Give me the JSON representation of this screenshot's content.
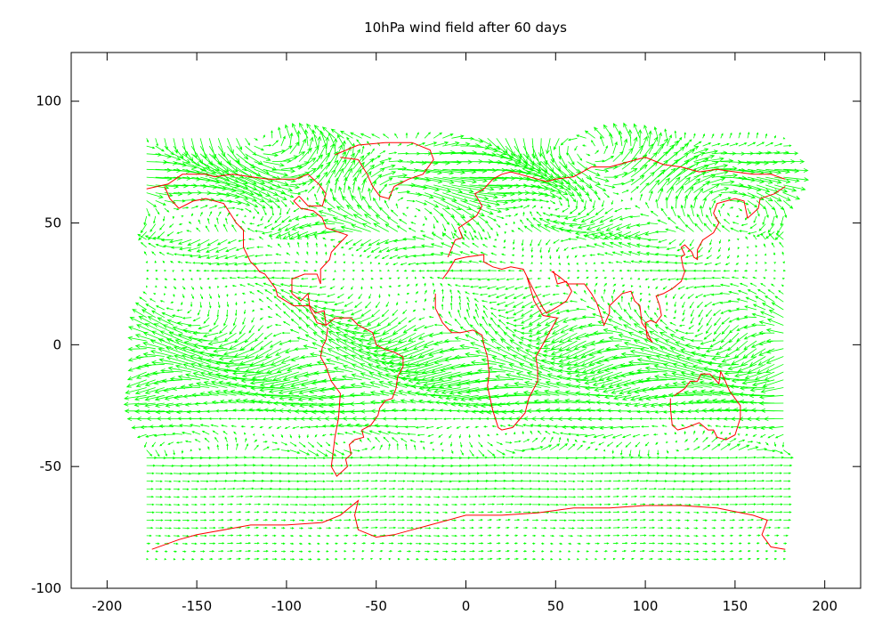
{
  "chart_data": {
    "type": "vector-field",
    "title": "10hPa wind field after 60 days",
    "xlabel": "",
    "ylabel": "",
    "xlim": [
      -220,
      220
    ],
    "ylim": [
      -100,
      120
    ],
    "xticks": [
      -200,
      -150,
      -100,
      -50,
      0,
      50,
      100,
      150,
      200
    ],
    "yticks": [
      -100,
      -50,
      0,
      50,
      100
    ],
    "grid": false,
    "field_extent": {
      "lon": [
        -178,
        178
      ],
      "lat": [
        -88,
        88
      ]
    },
    "colors": {
      "vectors": "#00ff00",
      "coastlines": "#ff0000",
      "axes": "#000000"
    },
    "coastlines": [
      [
        [
          -178,
          64
        ],
        [
          -166,
          66
        ],
        [
          -158,
          70
        ],
        [
          -145,
          70
        ],
        [
          -140,
          69
        ],
        [
          -130,
          70
        ],
        [
          -120,
          69
        ],
        [
          -110,
          68
        ],
        [
          -95,
          68
        ],
        [
          -88,
          70
        ],
        [
          -82,
          66
        ],
        [
          -78,
          62
        ],
        [
          -80,
          57
        ],
        [
          -88,
          57
        ],
        [
          -93,
          61
        ],
        [
          -96,
          59
        ],
        [
          -92,
          56
        ],
        [
          -85,
          55
        ],
        [
          -80,
          52
        ],
        [
          -78,
          48
        ],
        [
          -66,
          45
        ],
        [
          -70,
          42
        ],
        [
          -75,
          38
        ],
        [
          -76,
          35
        ],
        [
          -81,
          31
        ],
        [
          -81,
          25
        ],
        [
          -83,
          29
        ],
        [
          -90,
          29
        ],
        [
          -97,
          27
        ],
        [
          -97,
          21
        ],
        [
          -92,
          18
        ],
        [
          -88,
          21
        ],
        [
          -87,
          15
        ],
        [
          -83,
          9
        ],
        [
          -78,
          8
        ],
        [
          -79,
          14
        ],
        [
          -84,
          13
        ],
        [
          -87,
          16
        ],
        [
          -91,
          16
        ],
        [
          -96,
          16
        ],
        [
          -105,
          20
        ],
        [
          -106,
          23
        ],
        [
          -112,
          29
        ],
        [
          -115,
          30
        ],
        [
          -117,
          32
        ],
        [
          -120,
          34
        ],
        [
          -124,
          40
        ],
        [
          -124,
          47
        ],
        [
          -128,
          50
        ],
        [
          -135,
          58
        ],
        [
          -145,
          60
        ],
        [
          -152,
          59
        ],
        [
          -160,
          56
        ],
        [
          -165,
          60
        ],
        [
          -168,
          65
        ]
      ],
      [
        [
          -78,
          8
        ],
        [
          -73,
          11
        ],
        [
          -64,
          11
        ],
        [
          -60,
          8
        ],
        [
          -52,
          5
        ],
        [
          -50,
          0
        ],
        [
          -45,
          -2
        ],
        [
          -40,
          -3
        ],
        [
          -35,
          -5
        ],
        [
          -35,
          -9
        ],
        [
          -38,
          -13
        ],
        [
          -39,
          -18
        ],
        [
          -41,
          -22
        ],
        [
          -45,
          -23
        ],
        [
          -48,
          -26
        ],
        [
          -49,
          -29
        ],
        [
          -53,
          -33
        ],
        [
          -58,
          -35
        ],
        [
          -57,
          -38
        ],
        [
          -62,
          -39
        ],
        [
          -65,
          -41
        ],
        [
          -64,
          -45
        ],
        [
          -67,
          -47
        ],
        [
          -66,
          -50
        ],
        [
          -69,
          -52
        ],
        [
          -72,
          -54
        ],
        [
          -75,
          -50
        ],
        [
          -74,
          -44
        ],
        [
          -73,
          -38
        ],
        [
          -71,
          -30
        ],
        [
          -70,
          -20
        ],
        [
          -75,
          -15
        ],
        [
          -78,
          -9
        ],
        [
          -81,
          -5
        ],
        [
          -80,
          -1
        ],
        [
          -78,
          2
        ],
        [
          -77,
          7
        ]
      ],
      [
        [
          -73,
          78
        ],
        [
          -60,
          82
        ],
        [
          -45,
          83
        ],
        [
          -30,
          83
        ],
        [
          -20,
          80
        ],
        [
          -18,
          76
        ],
        [
          -22,
          72
        ],
        [
          -24,
          70
        ],
        [
          -32,
          68
        ],
        [
          -40,
          65
        ],
        [
          -43,
          60
        ],
        [
          -48,
          61
        ],
        [
          -52,
          65
        ],
        [
          -55,
          70
        ],
        [
          -60,
          76
        ],
        [
          -70,
          77
        ]
      ],
      [
        [
          -10,
          36
        ],
        [
          -6,
          43
        ],
        [
          -2,
          44
        ],
        [
          -4,
          48
        ],
        [
          2,
          51
        ],
        [
          6,
          53
        ],
        [
          9,
          57
        ],
        [
          5,
          62
        ],
        [
          10,
          64
        ],
        [
          15,
          68
        ],
        [
          20,
          70
        ],
        [
          25,
          71
        ],
        [
          30,
          70
        ],
        [
          40,
          68
        ],
        [
          45,
          67
        ],
        [
          50,
          68
        ],
        [
          60,
          69
        ],
        [
          70,
          73
        ],
        [
          80,
          73
        ],
        [
          90,
          75
        ],
        [
          100,
          77
        ],
        [
          110,
          74
        ],
        [
          120,
          73
        ],
        [
          130,
          71
        ],
        [
          140,
          72
        ],
        [
          150,
          71
        ],
        [
          160,
          70
        ],
        [
          170,
          70
        ],
        [
          178,
          68
        ]
      ],
      [
        [
          -17,
          21
        ],
        [
          -17,
          15
        ],
        [
          -13,
          9
        ],
        [
          -8,
          5
        ],
        [
          -3,
          5
        ],
        [
          4,
          6
        ],
        [
          9,
          4
        ],
        [
          10,
          0
        ],
        [
          12,
          -5
        ],
        [
          13,
          -12
        ],
        [
          12,
          -17
        ],
        [
          15,
          -27
        ],
        [
          18,
          -34
        ],
        [
          20,
          -35
        ],
        [
          26,
          -34
        ],
        [
          33,
          -28
        ],
        [
          35,
          -22
        ],
        [
          40,
          -15
        ],
        [
          40,
          -10
        ],
        [
          39,
          -5
        ],
        [
          42,
          -1
        ],
        [
          51,
          11
        ],
        [
          43,
          12
        ],
        [
          38,
          18
        ],
        [
          34,
          28
        ],
        [
          32,
          31
        ],
        [
          25,
          32
        ],
        [
          20,
          31
        ],
        [
          15,
          32
        ],
        [
          10,
          34
        ],
        [
          10,
          37
        ],
        [
          0,
          36
        ],
        [
          -6,
          35
        ],
        [
          -10,
          30
        ],
        [
          -13,
          27
        ]
      ],
      [
        [
          34,
          28
        ],
        [
          38,
          22
        ],
        [
          43,
          15
        ],
        [
          45,
          13
        ],
        [
          52,
          16
        ],
        [
          56,
          18
        ],
        [
          59,
          22
        ],
        [
          56,
          26
        ],
        [
          51,
          25
        ],
        [
          49,
          30
        ],
        [
          48,
          30
        ],
        [
          52,
          28
        ],
        [
          57,
          25
        ],
        [
          62,
          25
        ],
        [
          66,
          25
        ],
        [
          70,
          21
        ],
        [
          73,
          17
        ],
        [
          77,
          8
        ],
        [
          80,
          13
        ],
        [
          80,
          16
        ],
        [
          87,
          21
        ],
        [
          92,
          22
        ],
        [
          94,
          18
        ],
        [
          97,
          16
        ],
        [
          98,
          9
        ],
        [
          100,
          7
        ],
        [
          103,
          2
        ],
        [
          104,
          1
        ],
        [
          101,
          3
        ],
        [
          100,
          9
        ],
        [
          103,
          10
        ],
        [
          106,
          9
        ],
        [
          109,
          12
        ],
        [
          108,
          16
        ],
        [
          106,
          20
        ],
        [
          110,
          21
        ],
        [
          115,
          23
        ],
        [
          120,
          26
        ],
        [
          122,
          30
        ],
        [
          121,
          32
        ],
        [
          120,
          36
        ],
        [
          122,
          37
        ],
        [
          120,
          40
        ],
        [
          122,
          41
        ],
        [
          126,
          38
        ],
        [
          127,
          36
        ],
        [
          129,
          35
        ],
        [
          129,
          39
        ],
        [
          132,
          43
        ],
        [
          138,
          46
        ],
        [
          141,
          50
        ],
        [
          138,
          54
        ],
        [
          140,
          58
        ],
        [
          150,
          60
        ],
        [
          155,
          59
        ],
        [
          157,
          52
        ],
        [
          163,
          56
        ],
        [
          164,
          60
        ],
        [
          172,
          62
        ],
        [
          178,
          65
        ]
      ],
      [
        [
          114,
          -22
        ],
        [
          114,
          -26
        ],
        [
          115,
          -33
        ],
        [
          118,
          -35
        ],
        [
          123,
          -34
        ],
        [
          130,
          -32
        ],
        [
          135,
          -35
        ],
        [
          138,
          -35
        ],
        [
          140,
          -38
        ],
        [
          145,
          -39
        ],
        [
          150,
          -37
        ],
        [
          153,
          -30
        ],
        [
          153,
          -25
        ],
        [
          147,
          -19
        ],
        [
          144,
          -14
        ],
        [
          142,
          -11
        ],
        [
          141,
          -16
        ],
        [
          136,
          -12
        ],
        [
          131,
          -12
        ],
        [
          129,
          -15
        ],
        [
          125,
          -15
        ],
        [
          122,
          -18
        ],
        [
          116,
          -21
        ]
      ],
      [
        [
          -175,
          -84
        ],
        [
          -160,
          -80
        ],
        [
          -150,
          -78
        ],
        [
          -120,
          -74
        ],
        [
          -100,
          -74
        ],
        [
          -80,
          -73
        ],
        [
          -70,
          -70
        ],
        [
          -60,
          -64
        ],
        [
          -62,
          -70
        ],
        [
          -60,
          -76
        ],
        [
          -50,
          -79
        ],
        [
          -40,
          -78
        ],
        [
          -30,
          -76
        ],
        [
          -20,
          -74
        ],
        [
          0,
          -70
        ],
        [
          20,
          -70
        ],
        [
          40,
          -69
        ],
        [
          60,
          -67
        ],
        [
          80,
          -67
        ],
        [
          100,
          -66
        ],
        [
          120,
          -66
        ],
        [
          140,
          -67
        ],
        [
          160,
          -70
        ],
        [
          168,
          -72
        ],
        [
          165,
          -78
        ],
        [
          170,
          -83
        ],
        [
          178,
          -84
        ]
      ]
    ]
  }
}
